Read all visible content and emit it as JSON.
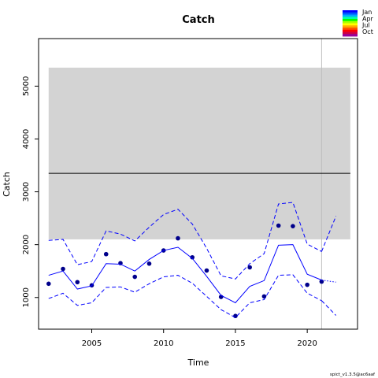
{
  "chart_data": {
    "type": "line",
    "title": "Catch",
    "xlabel": "Time",
    "ylabel": "Catch",
    "xlim": [
      2001.3,
      2023.5
    ],
    "ylim": [
      400,
      5900
    ],
    "x_ticks": [
      2005,
      2010,
      2015,
      2020
    ],
    "y_ticks": [
      1000,
      2000,
      3000,
      4000,
      5000
    ],
    "grid": false,
    "legend_placement": "top-right",
    "legend": [
      {
        "label": "Jan",
        "color": "#0000ff"
      },
      {
        "label": "Apr",
        "color": "#00ff00"
      },
      {
        "label": "Jul",
        "color": "#ffff00"
      },
      {
        "label": "Oct",
        "color": "#ff0000"
      }
    ],
    "legend_gradient": [
      "#0000ff",
      "#0055ff",
      "#00aaff",
      "#00ffaa",
      "#00ff00",
      "#aaff00",
      "#ffff00",
      "#ffaa00",
      "#ff5500",
      "#ff0000",
      "#cc0044",
      "#990099"
    ],
    "reference_band": {
      "x": [
        2002,
        2023
      ],
      "y": [
        2100,
        5350
      ],
      "color": "#d3d3d3"
    },
    "reference_line": {
      "x": [
        2002,
        2023
      ],
      "y": 3350,
      "color": "#000000"
    },
    "vertical_line": {
      "x": 2021,
      "color": "#bebebe"
    },
    "series": [
      {
        "role": "observations",
        "color": "#00008b",
        "x": [
          2002,
          2003,
          2004,
          2005,
          2006,
          2007,
          2008,
          2009,
          2010,
          2011,
          2012,
          2013,
          2014,
          2015,
          2016,
          2017,
          2018,
          2019,
          2020,
          2021
        ],
        "values": [
          1260,
          1540,
          1290,
          1230,
          1820,
          1650,
          1390,
          1640,
          1890,
          2120,
          1760,
          1510,
          1010,
          650,
          1570,
          1020,
          2360,
          2350,
          1240,
          1300
        ]
      },
      {
        "role": "estimate",
        "color": "#0000ff",
        "x": [
          2002,
          2003,
          2004,
          2005,
          2006,
          2007,
          2008,
          2009,
          2010,
          2011,
          2012,
          2013,
          2014,
          2015,
          2016,
          2017,
          2018,
          2019,
          2020,
          2021
        ],
        "values": [
          1420,
          1500,
          1160,
          1220,
          1640,
          1630,
          1500,
          1720,
          1890,
          1950,
          1740,
          1400,
          1040,
          900,
          1210,
          1320,
          1990,
          2000,
          1440,
          1330
        ]
      },
      {
        "role": "upper-ci",
        "color": "#0000ff",
        "x": [
          2002,
          2003,
          2004,
          2005,
          2006,
          2007,
          2008,
          2009,
          2010,
          2011,
          2012,
          2013,
          2014,
          2015,
          2016,
          2017,
          2018,
          2019,
          2020,
          2021
        ],
        "values": [
          2080,
          2100,
          1620,
          1680,
          2260,
          2200,
          2070,
          2330,
          2570,
          2670,
          2390,
          1930,
          1410,
          1350,
          1640,
          1830,
          2770,
          2800,
          2010,
          1870
        ]
      },
      {
        "role": "lower-ci",
        "color": "#0000ff",
        "x": [
          2002,
          2003,
          2004,
          2005,
          2006,
          2007,
          2008,
          2009,
          2010,
          2011,
          2012,
          2013,
          2014,
          2015,
          2016,
          2017,
          2018,
          2019,
          2020,
          2021
        ],
        "values": [
          980,
          1080,
          850,
          900,
          1190,
          1200,
          1100,
          1260,
          1390,
          1420,
          1270,
          1020,
          770,
          620,
          900,
          960,
          1420,
          1430,
          1080,
          940
        ]
      },
      {
        "role": "prediction",
        "color": "#0000ff",
        "x": [
          2021,
          2022
        ],
        "values": [
          1330,
          1290
        ]
      },
      {
        "role": "prediction-upper",
        "color": "#0000ff",
        "x": [
          2021,
          2022
        ],
        "values": [
          1870,
          2540
        ]
      },
      {
        "role": "prediction-lower",
        "color": "#0000ff",
        "x": [
          2021,
          2022
        ],
        "values": [
          940,
          660
        ]
      }
    ],
    "annotations": [
      "spict_v1.3.5@ac6aaf"
    ]
  }
}
